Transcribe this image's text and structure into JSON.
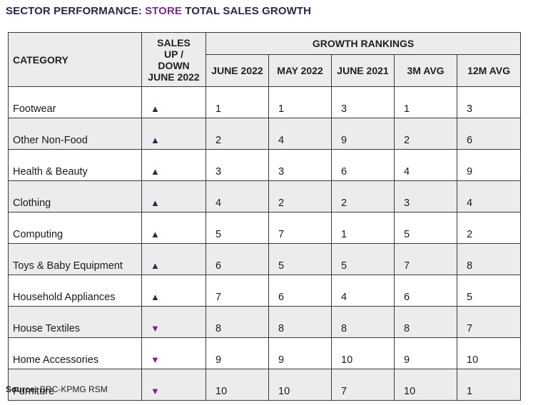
{
  "title": {
    "prefix": "SECTOR PERFORMANCE: ",
    "highlight": "STORE",
    "suffix": " TOTAL SALES GROWTH"
  },
  "colors": {
    "up": "#2a2a5c",
    "down": "#8b1a8b",
    "title": "#2a2350",
    "highlight": "#7a2a8c"
  },
  "table": {
    "header": {
      "category": "CATEGORY",
      "sales": [
        "SALES",
        "UP /",
        "DOWN",
        "JUNE 2022"
      ],
      "group": "GROWTH RANKINGS",
      "columns": [
        "JUNE 2022",
        "MAY 2022",
        "JUNE 2021",
        "3M AVG",
        "12M AVG"
      ]
    },
    "rows": [
      {
        "category": "Footwear",
        "direction": "up",
        "arrow": "▲",
        "values": [
          "1",
          "1",
          "3",
          "1",
          "3"
        ]
      },
      {
        "category": "Other Non-Food",
        "direction": "up",
        "arrow": "▲",
        "values": [
          "2",
          "4",
          "9",
          "2",
          "6"
        ]
      },
      {
        "category": "Health & Beauty",
        "direction": "up",
        "arrow": "▲",
        "values": [
          "3",
          "3",
          "6",
          "4",
          "9"
        ]
      },
      {
        "category": "Clothing",
        "direction": "up",
        "arrow": "▲",
        "values": [
          "4",
          "2",
          "2",
          "3",
          "4"
        ]
      },
      {
        "category": "Computing",
        "direction": "up",
        "arrow": "▲",
        "values": [
          "5",
          "7",
          "1",
          "5",
          "2"
        ]
      },
      {
        "category": "Toys & Baby Equipment",
        "direction": "up",
        "arrow": "▲",
        "values": [
          "6",
          "5",
          "5",
          "7",
          "8"
        ]
      },
      {
        "category": "Household Appliances",
        "direction": "up",
        "arrow": "▲",
        "values": [
          "7",
          "6",
          "4",
          "6",
          "5"
        ]
      },
      {
        "category": "House Textiles",
        "direction": "down",
        "arrow": "▼",
        "values": [
          "8",
          "8",
          "8",
          "8",
          "7"
        ]
      },
      {
        "category": "Home Accessories",
        "direction": "down",
        "arrow": "▼",
        "values": [
          "9",
          "9",
          "10",
          "9",
          "10"
        ]
      },
      {
        "category": "Furniture",
        "direction": "down",
        "arrow": "▼",
        "values": [
          "10",
          "10",
          "7",
          "10",
          "1"
        ]
      }
    ]
  },
  "source": {
    "label": "Source:",
    "text": " BRC-KPMG RSM"
  }
}
